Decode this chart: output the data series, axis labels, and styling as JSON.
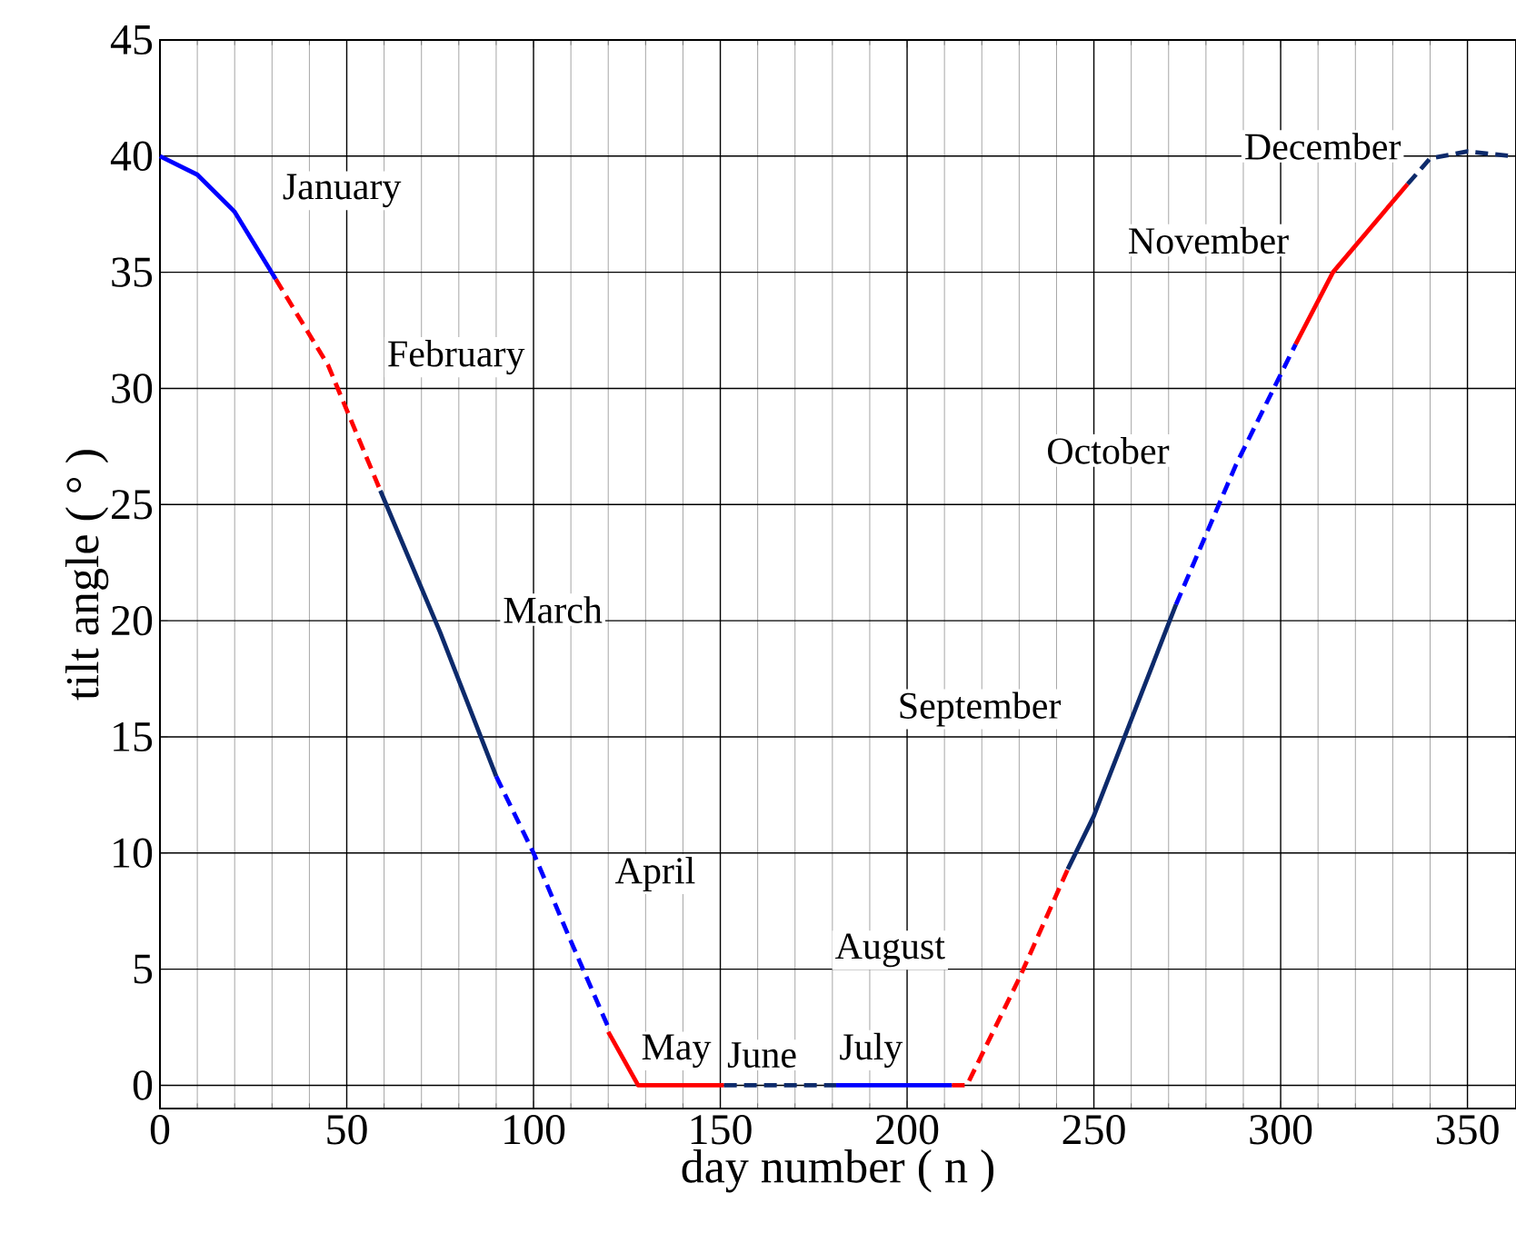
{
  "chart_data": {
    "type": "line",
    "xlabel": "day number ( n )",
    "ylabel": "tilt angle ( ° )",
    "xlim": [
      0,
      363
    ],
    "ylim": [
      -1,
      45
    ],
    "xticks": [
      0,
      50,
      100,
      150,
      200,
      250,
      300,
      350
    ],
    "yticks": [
      0,
      5,
      10,
      15,
      20,
      25,
      30,
      35,
      40,
      45
    ],
    "grid": true,
    "marker": "none",
    "series": [
      {
        "name": "January",
        "color": "#0000ff",
        "line_style": "solid",
        "x": [
          0,
          10,
          20,
          31
        ],
        "values": [
          40,
          39.2,
          37.6,
          34.7
        ]
      },
      {
        "name": "February",
        "color": "#ff0000",
        "line_style": "dashed",
        "x": [
          31,
          45,
          59
        ],
        "values": [
          34.7,
          31,
          25.6
        ]
      },
      {
        "name": "March",
        "color": "#0d2a6b",
        "line_style": "solid",
        "x": [
          59,
          75,
          90
        ],
        "values": [
          25.6,
          19.5,
          13.3
        ]
      },
      {
        "name": "April",
        "color": "#0000ff",
        "line_style": "dashed",
        "x": [
          90,
          100,
          110,
          120
        ],
        "values": [
          13.3,
          10,
          6.2,
          2.5
        ]
      },
      {
        "name": "May",
        "color": "#ff0000",
        "line_style": "solid",
        "x": [
          120,
          128,
          151
        ],
        "values": [
          2.3,
          0,
          0
        ]
      },
      {
        "name": "June",
        "color": "#0d2a6b",
        "line_style": "dashed",
        "x": [
          151,
          181
        ],
        "values": [
          0,
          0
        ]
      },
      {
        "name": "July",
        "color": "#0000ff",
        "line_style": "solid",
        "x": [
          181,
          212
        ],
        "values": [
          0,
          0
        ]
      },
      {
        "name": "August",
        "color": "#ff0000",
        "line_style": "dashed",
        "x": [
          212,
          216,
          230,
          243
        ],
        "values": [
          0,
          0,
          4.6,
          9.3
        ]
      },
      {
        "name": "September",
        "color": "#0d2a6b",
        "line_style": "solid",
        "x": [
          243,
          250,
          272
        ],
        "values": [
          9.3,
          11.6,
          20.7
        ]
      },
      {
        "name": "October",
        "color": "#0000ff",
        "line_style": "dashed",
        "x": [
          272,
          288,
          304
        ],
        "values": [
          20.7,
          26.7,
          31.9
        ]
      },
      {
        "name": "November",
        "color": "#ff0000",
        "line_style": "solid",
        "x": [
          304,
          314,
          334
        ],
        "values": [
          31.9,
          35,
          38.8
        ]
      },
      {
        "name": "December",
        "color": "#0d2a6b",
        "line_style": "dashed",
        "x": [
          334,
          340,
          350,
          362
        ],
        "values": [
          38.8,
          39.9,
          40.2,
          40
        ]
      }
    ]
  }
}
